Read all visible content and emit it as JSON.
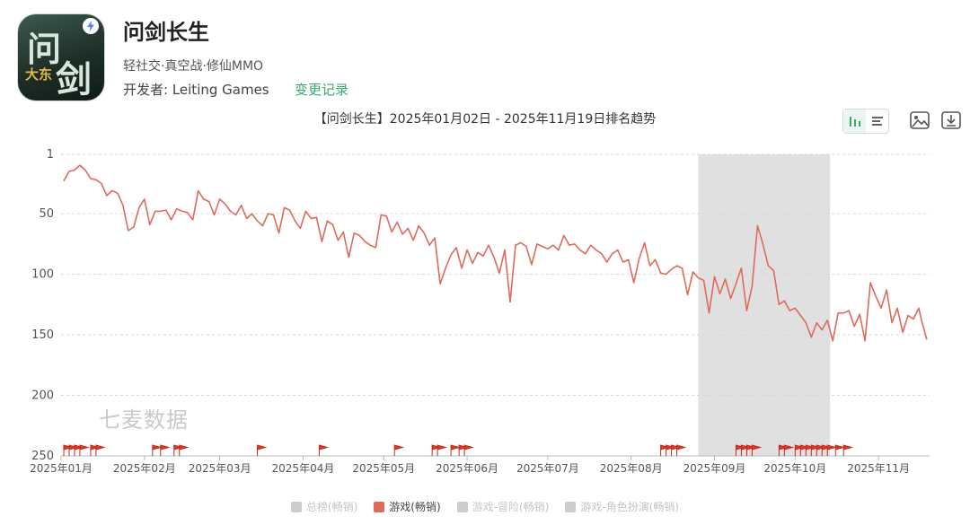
{
  "app": {
    "name": "问剑长生",
    "tags": "轻社交·真空战·修仙MMO",
    "developer": "开发者: Leiting Games",
    "changelog_label": "变更记录"
  },
  "watermark": "七麦数据",
  "icons": {
    "bar_view": "bar-chart-icon",
    "list_view": "list-icon",
    "save_image": "image-icon",
    "download": "download-icon",
    "flag": "flag-icon"
  },
  "chart_data": {
    "type": "line",
    "title": "【问剑长生】2025年01月02日 - 2025年11月19日排名趋势",
    "x_ticks": [
      "2025年01月",
      "2025年02月",
      "2025年03月",
      "2025年04月",
      "2025年05月",
      "2025年06月",
      "2025年07月",
      "2025年08月",
      "2025年09月",
      "2025年10月",
      "2025年11月"
    ],
    "y_ticks": [
      1,
      50,
      100,
      150,
      200,
      250
    ],
    "ylim": [
      1,
      250
    ],
    "y_inverted": true,
    "xlim": [
      "2025-01-01",
      "2025-11-20"
    ],
    "grid": "horizontal dashed",
    "missing_data_range": [
      "2025-08-26",
      "2025-10-14"
    ],
    "missing_data_color": "#e0e0e0",
    "series": [
      {
        "name": "游戏(畅销)",
        "color": "#dd6b5c",
        "points": [
          [
            "2025-01-02",
            23
          ],
          [
            "2025-01-04",
            15
          ],
          [
            "2025-01-06",
            14
          ],
          [
            "2025-01-08",
            10
          ],
          [
            "2025-01-10",
            14
          ],
          [
            "2025-01-12",
            21
          ],
          [
            "2025-01-14",
            22
          ],
          [
            "2025-01-16",
            25
          ],
          [
            "2025-01-18",
            35
          ],
          [
            "2025-01-20",
            31
          ],
          [
            "2025-01-22",
            33
          ],
          [
            "2025-01-24",
            43
          ],
          [
            "2025-01-26",
            64
          ],
          [
            "2025-01-28",
            61
          ],
          [
            "2025-01-30",
            45
          ],
          [
            "2025-02-01",
            38
          ],
          [
            "2025-02-03",
            59
          ],
          [
            "2025-02-05",
            48
          ],
          [
            "2025-02-07",
            48
          ],
          [
            "2025-02-09",
            47
          ],
          [
            "2025-02-11",
            55
          ],
          [
            "2025-02-13",
            46
          ],
          [
            "2025-02-15",
            48
          ],
          [
            "2025-02-17",
            49
          ],
          [
            "2025-02-19",
            55
          ],
          [
            "2025-02-21",
            31
          ],
          [
            "2025-02-23",
            38
          ],
          [
            "2025-02-25",
            40
          ],
          [
            "2025-02-27",
            51
          ],
          [
            "2025-03-01",
            38
          ],
          [
            "2025-03-03",
            42
          ],
          [
            "2025-03-05",
            48
          ],
          [
            "2025-03-07",
            51
          ],
          [
            "2025-03-09",
            43
          ],
          [
            "2025-03-11",
            54
          ],
          [
            "2025-03-13",
            50
          ],
          [
            "2025-03-15",
            56
          ],
          [
            "2025-03-17",
            60
          ],
          [
            "2025-03-19",
            50
          ],
          [
            "2025-03-21",
            51
          ],
          [
            "2025-03-23",
            66
          ],
          [
            "2025-03-25",
            45
          ],
          [
            "2025-03-27",
            47
          ],
          [
            "2025-03-29",
            56
          ],
          [
            "2025-03-31",
            62
          ],
          [
            "2025-04-02",
            48
          ],
          [
            "2025-04-04",
            54
          ],
          [
            "2025-04-06",
            53
          ],
          [
            "2025-04-08",
            73
          ],
          [
            "2025-04-10",
            56
          ],
          [
            "2025-04-12",
            59
          ],
          [
            "2025-04-14",
            72
          ],
          [
            "2025-04-16",
            65
          ],
          [
            "2025-04-18",
            86
          ],
          [
            "2025-04-20",
            66
          ],
          [
            "2025-04-22",
            68
          ],
          [
            "2025-04-24",
            73
          ],
          [
            "2025-04-26",
            76
          ],
          [
            "2025-04-28",
            78
          ],
          [
            "2025-04-30",
            51
          ],
          [
            "2025-05-02",
            52
          ],
          [
            "2025-05-04",
            65
          ],
          [
            "2025-05-06",
            57
          ],
          [
            "2025-05-08",
            67
          ],
          [
            "2025-05-10",
            62
          ],
          [
            "2025-05-12",
            72
          ],
          [
            "2025-05-14",
            60
          ],
          [
            "2025-05-16",
            66
          ],
          [
            "2025-05-18",
            76
          ],
          [
            "2025-05-20",
            70
          ],
          [
            "2025-05-22",
            108
          ],
          [
            "2025-05-24",
            95
          ],
          [
            "2025-05-26",
            84
          ],
          [
            "2025-05-28",
            78
          ],
          [
            "2025-05-30",
            95
          ],
          [
            "2025-06-01",
            80
          ],
          [
            "2025-06-03",
            91
          ],
          [
            "2025-06-05",
            82
          ],
          [
            "2025-06-07",
            85
          ],
          [
            "2025-06-09",
            76
          ],
          [
            "2025-06-11",
            86
          ],
          [
            "2025-06-13",
            99
          ],
          [
            "2025-06-15",
            80
          ],
          [
            "2025-06-17",
            123
          ],
          [
            "2025-06-19",
            76
          ],
          [
            "2025-06-21",
            74
          ],
          [
            "2025-06-23",
            77
          ],
          [
            "2025-06-25",
            92
          ],
          [
            "2025-06-27",
            75
          ],
          [
            "2025-06-29",
            77
          ],
          [
            "2025-07-01",
            79
          ],
          [
            "2025-07-03",
            76
          ],
          [
            "2025-07-05",
            80
          ],
          [
            "2025-07-07",
            68
          ],
          [
            "2025-07-09",
            76
          ],
          [
            "2025-07-11",
            75
          ],
          [
            "2025-07-13",
            80
          ],
          [
            "2025-07-15",
            83
          ],
          [
            "2025-07-17",
            76
          ],
          [
            "2025-07-19",
            80
          ],
          [
            "2025-07-21",
            83
          ],
          [
            "2025-07-23",
            90
          ],
          [
            "2025-07-25",
            83
          ],
          [
            "2025-07-27",
            80
          ],
          [
            "2025-07-29",
            90
          ],
          [
            "2025-07-31",
            88
          ],
          [
            "2025-08-02",
            107
          ],
          [
            "2025-08-04",
            87
          ],
          [
            "2025-08-06",
            74
          ],
          [
            "2025-08-08",
            93
          ],
          [
            "2025-08-10",
            88
          ],
          [
            "2025-08-12",
            99
          ],
          [
            "2025-08-14",
            100
          ],
          [
            "2025-08-16",
            96
          ],
          [
            "2025-08-18",
            93
          ],
          [
            "2025-08-20",
            95
          ],
          [
            "2025-08-22",
            117
          ],
          [
            "2025-08-24",
            98
          ],
          [
            "2025-08-26",
            103
          ],
          [
            "2025-08-28",
            105
          ],
          [
            "2025-08-30",
            132
          ],
          [
            "2025-09-01",
            102
          ],
          [
            "2025-09-03",
            116
          ],
          [
            "2025-09-05",
            104
          ],
          [
            "2025-09-07",
            120
          ],
          [
            "2025-09-09",
            108
          ],
          [
            "2025-09-11",
            95
          ],
          [
            "2025-09-13",
            130
          ],
          [
            "2025-09-15",
            110
          ],
          [
            "2025-09-17",
            60
          ],
          [
            "2025-09-19",
            75
          ],
          [
            "2025-09-21",
            93
          ],
          [
            "2025-09-23",
            97
          ],
          [
            "2025-09-25",
            125
          ],
          [
            "2025-09-27",
            122
          ],
          [
            "2025-09-29",
            130
          ],
          [
            "2025-10-01",
            128
          ],
          [
            "2025-10-03",
            134
          ],
          [
            "2025-10-05",
            140
          ],
          [
            "2025-10-07",
            152
          ],
          [
            "2025-10-09",
            140
          ],
          [
            "2025-10-11",
            146
          ],
          [
            "2025-10-13",
            138
          ],
          [
            "2025-10-15",
            155
          ],
          [
            "2025-10-17",
            132
          ],
          [
            "2025-10-19",
            132
          ],
          [
            "2025-10-21",
            130
          ],
          [
            "2025-10-23",
            143
          ],
          [
            "2025-10-25",
            133
          ],
          [
            "2025-10-27",
            155
          ],
          [
            "2025-10-29",
            107
          ],
          [
            "2025-10-31",
            118
          ],
          [
            "2025-11-02",
            128
          ],
          [
            "2025-11-04",
            113
          ],
          [
            "2025-11-06",
            140
          ],
          [
            "2025-11-08",
            128
          ],
          [
            "2025-11-10",
            148
          ],
          [
            "2025-11-12",
            134
          ],
          [
            "2025-11-14",
            137
          ],
          [
            "2025-11-16",
            128
          ],
          [
            "2025-11-17",
            138
          ],
          [
            "2025-11-19",
            154
          ]
        ]
      }
    ],
    "event_flags": [
      "2025-01-02",
      "2025-01-04",
      "2025-01-06",
      "2025-01-08",
      "2025-01-12",
      "2025-01-14",
      "2025-02-04",
      "2025-02-07",
      "2025-02-12",
      "2025-02-14",
      "2025-03-15",
      "2025-04-07",
      "2025-05-05",
      "2025-05-19",
      "2025-05-21",
      "2025-05-26",
      "2025-05-29",
      "2025-05-31",
      "2025-08-12",
      "2025-08-14",
      "2025-08-16",
      "2025-08-18",
      "2025-09-09",
      "2025-09-11",
      "2025-09-13",
      "2025-09-15",
      "2025-09-25",
      "2025-09-27",
      "2025-10-01",
      "2025-10-03",
      "2025-10-05",
      "2025-10-07",
      "2025-10-09",
      "2025-10-11",
      "2025-10-13",
      "2025-10-16",
      "2025-10-19"
    ]
  },
  "legend": {
    "items": [
      {
        "label": "总榜(畅销)",
        "active": false
      },
      {
        "label": "游戏(畅销)",
        "active": true
      },
      {
        "label": "游戏-冒险(畅销)",
        "active": false
      },
      {
        "label": "游戏-角色扮演(畅销)",
        "active": false
      }
    ],
    "active_color": "#dd6b5c",
    "inactive_color": "#cccccc"
  }
}
